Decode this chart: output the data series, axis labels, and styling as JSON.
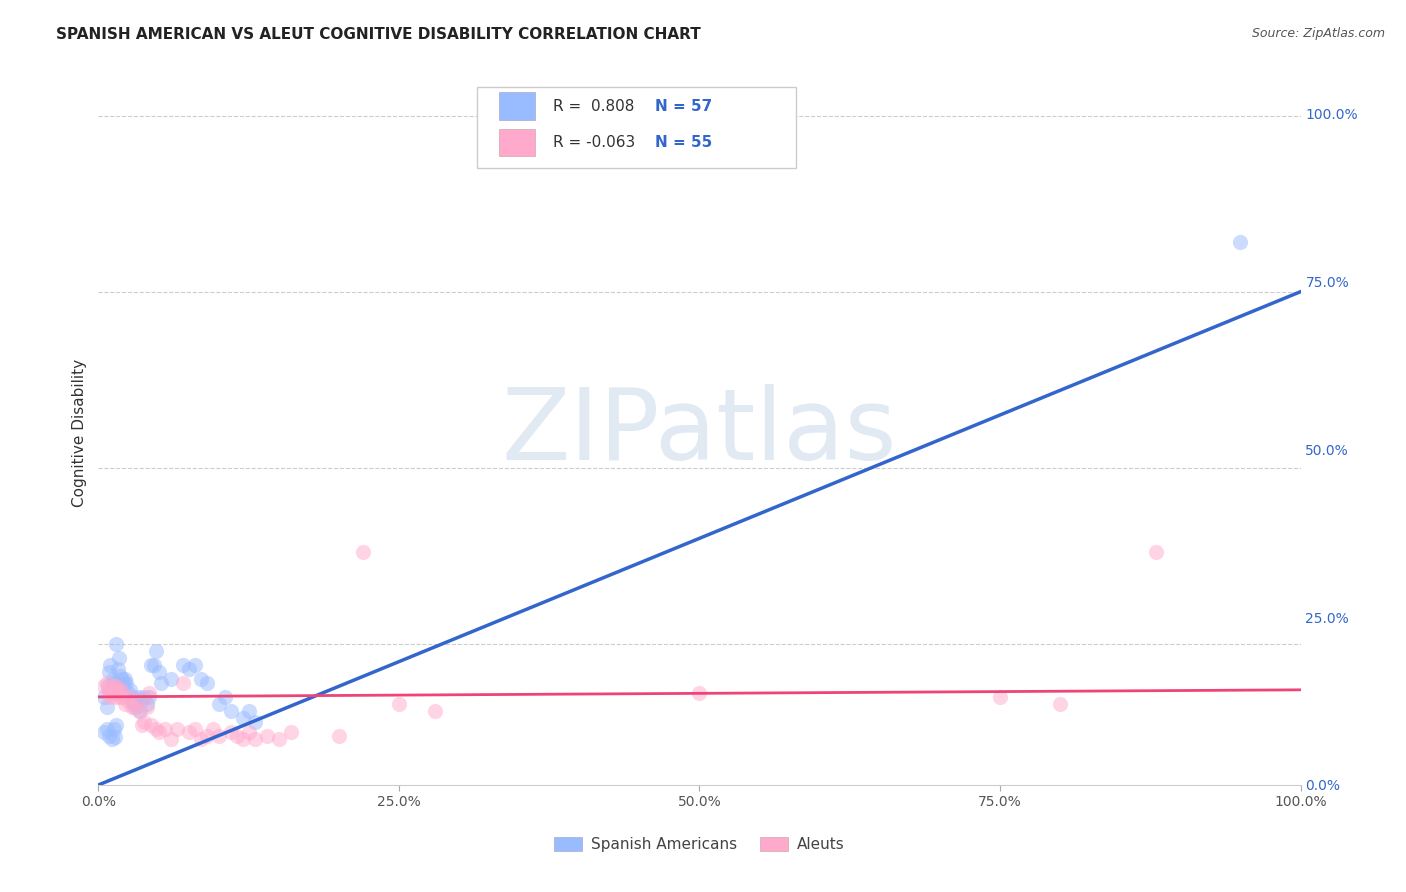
{
  "title": "SPANISH AMERICAN VS ALEUT COGNITIVE DISABILITY CORRELATION CHART",
  "source": "Source: ZipAtlas.com",
  "ylabel": "Cognitive Disability",
  "watermark": "ZIPatlas",
  "blue_R": 0.808,
  "blue_N": 57,
  "pink_R": -0.063,
  "pink_N": 55,
  "blue_scatter": [
    [
      0.5,
      17.5
    ],
    [
      0.7,
      16.0
    ],
    [
      0.8,
      19.0
    ],
    [
      0.9,
      21.0
    ],
    [
      1.0,
      22.0
    ],
    [
      1.1,
      18.5
    ],
    [
      1.2,
      20.0
    ],
    [
      1.3,
      19.5
    ],
    [
      1.4,
      18.0
    ],
    [
      1.5,
      25.0
    ],
    [
      1.6,
      21.5
    ],
    [
      1.7,
      23.0
    ],
    [
      1.8,
      20.5
    ],
    [
      1.9,
      19.0
    ],
    [
      2.0,
      20.0
    ],
    [
      2.1,
      19.5
    ],
    [
      2.2,
      20.0
    ],
    [
      2.3,
      19.5
    ],
    [
      2.5,
      18.0
    ],
    [
      2.6,
      18.5
    ],
    [
      2.7,
      17.0
    ],
    [
      2.8,
      17.5
    ],
    [
      2.9,
      17.0
    ],
    [
      3.0,
      16.5
    ],
    [
      3.1,
      16.0
    ],
    [
      3.2,
      17.0
    ],
    [
      3.4,
      17.5
    ],
    [
      3.5,
      15.5
    ],
    [
      3.6,
      17.0
    ],
    [
      3.8,
      17.5
    ],
    [
      4.0,
      16.5
    ],
    [
      4.2,
      17.5
    ],
    [
      4.4,
      22.0
    ],
    [
      4.6,
      22.0
    ],
    [
      4.8,
      24.0
    ],
    [
      5.0,
      21.0
    ],
    [
      5.2,
      19.5
    ],
    [
      6.0,
      20.0
    ],
    [
      7.0,
      22.0
    ],
    [
      7.5,
      21.5
    ],
    [
      8.0,
      22.0
    ],
    [
      8.5,
      20.0
    ],
    [
      9.0,
      19.5
    ],
    [
      10.0,
      16.5
    ],
    [
      10.5,
      17.5
    ],
    [
      11.0,
      15.5
    ],
    [
      12.0,
      14.5
    ],
    [
      12.5,
      15.5
    ],
    [
      13.0,
      14.0
    ],
    [
      0.5,
      12.5
    ],
    [
      0.7,
      13.0
    ],
    [
      0.9,
      12.0
    ],
    [
      1.1,
      11.5
    ],
    [
      1.3,
      13.0
    ],
    [
      1.5,
      13.5
    ],
    [
      1.4,
      11.8
    ],
    [
      95.0,
      82.0
    ]
  ],
  "pink_scatter": [
    [
      0.5,
      19.0
    ],
    [
      0.7,
      19.5
    ],
    [
      0.8,
      18.5
    ],
    [
      0.9,
      17.5
    ],
    [
      1.0,
      18.0
    ],
    [
      1.1,
      18.5
    ],
    [
      1.2,
      19.0
    ],
    [
      1.3,
      18.0
    ],
    [
      1.4,
      17.5
    ],
    [
      1.5,
      19.0
    ],
    [
      1.6,
      18.5
    ],
    [
      1.7,
      17.5
    ],
    [
      1.8,
      18.0
    ],
    [
      1.9,
      18.5
    ],
    [
      2.0,
      17.5
    ],
    [
      2.2,
      16.5
    ],
    [
      2.4,
      17.0
    ],
    [
      2.6,
      17.5
    ],
    [
      2.8,
      16.0
    ],
    [
      3.0,
      16.0
    ],
    [
      3.2,
      17.0
    ],
    [
      3.4,
      15.5
    ],
    [
      3.6,
      13.5
    ],
    [
      3.8,
      14.0
    ],
    [
      4.0,
      16.0
    ],
    [
      4.2,
      18.0
    ],
    [
      4.4,
      13.5
    ],
    [
      4.8,
      13.0
    ],
    [
      5.0,
      12.5
    ],
    [
      5.5,
      13.0
    ],
    [
      6.0,
      11.5
    ],
    [
      6.5,
      13.0
    ],
    [
      7.0,
      19.5
    ],
    [
      7.5,
      12.5
    ],
    [
      8.0,
      13.0
    ],
    [
      8.5,
      11.5
    ],
    [
      9.0,
      12.0
    ],
    [
      9.5,
      13.0
    ],
    [
      10.0,
      12.0
    ],
    [
      11.0,
      12.5
    ],
    [
      11.5,
      12.0
    ],
    [
      12.0,
      11.5
    ],
    [
      12.5,
      12.5
    ],
    [
      13.0,
      11.5
    ],
    [
      14.0,
      12.0
    ],
    [
      15.0,
      11.5
    ],
    [
      16.0,
      12.5
    ],
    [
      20.0,
      12.0
    ],
    [
      22.0,
      38.0
    ],
    [
      25.0,
      16.5
    ],
    [
      28.0,
      15.5
    ],
    [
      50.0,
      18.0
    ],
    [
      75.0,
      17.5
    ],
    [
      80.0,
      16.5
    ],
    [
      88.0,
      38.0
    ]
  ],
  "blue_line_x": [
    0.0,
    100.0
  ],
  "blue_line_y": [
    5.0,
    75.0
  ],
  "pink_line_x": [
    0.0,
    100.0
  ],
  "pink_line_y": [
    17.5,
    18.5
  ],
  "xlim": [
    0.0,
    100.0
  ],
  "ylim": [
    5.0,
    105.0
  ],
  "xticks": [
    0.0,
    25.0,
    50.0,
    75.0,
    100.0
  ],
  "xticklabels": [
    "0.0%",
    "25.0%",
    "50.0%",
    "75.0%",
    "100.0%"
  ],
  "ytick_right_vals": [
    0.0,
    25.0,
    50.0,
    75.0,
    100.0
  ],
  "ytick_right_labels": [
    "0.0%",
    "25.0%",
    "50.0%",
    "75.0%",
    "100.0%"
  ],
  "grid_color": "#cccccc",
  "background_color": "#ffffff",
  "blue_color": "#99bbff",
  "pink_color": "#ffaacc",
  "blue_line_color": "#3366cc",
  "pink_line_color": "#ee4477",
  "scatter_size": 120,
  "scatter_alpha": 0.5,
  "legend_blue_label": "Spanish Americans",
  "legend_pink_label": "Aleuts",
  "watermark_color": "#c5d5e8",
  "watermark_alpha": 0.5,
  "legend_text_color": "#3366cc",
  "legend_r_blue": "R =  0.808",
  "legend_n_blue": "N = 57",
  "legend_r_pink": "R = -0.063",
  "legend_n_pink": "N = 55"
}
